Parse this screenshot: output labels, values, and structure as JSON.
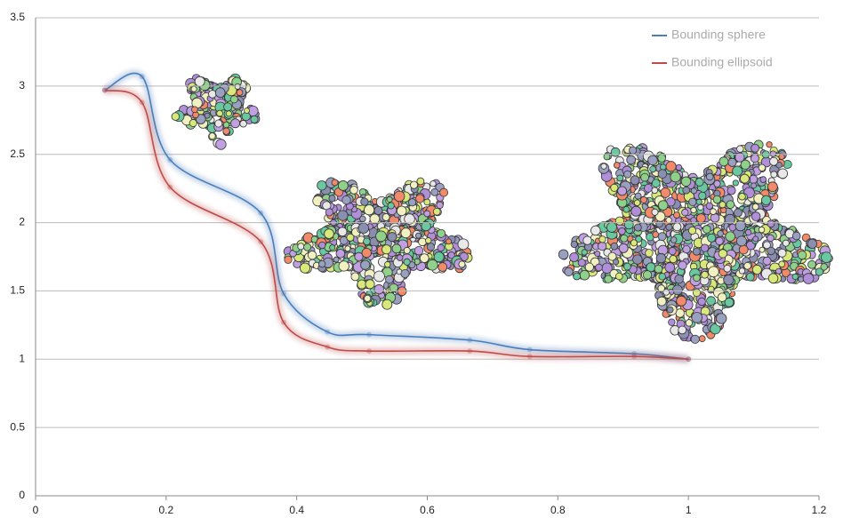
{
  "chart_data": {
    "type": "line",
    "x": [
      0.106,
      0.163,
      0.206,
      0.345,
      0.38,
      0.447,
      0.511,
      0.665,
      0.757,
      0.917,
      1.0
    ],
    "series": [
      {
        "name": "Bounding sphere",
        "color": "#4a7ebb",
        "values": [
          2.97,
          3.07,
          2.46,
          2.07,
          1.48,
          1.2,
          1.18,
          1.14,
          1.07,
          1.04,
          1.0
        ]
      },
      {
        "name": "Bounding ellipsoid",
        "color": "#be4b48",
        "values": [
          2.97,
          2.88,
          2.26,
          1.86,
          1.27,
          1.09,
          1.06,
          1.06,
          1.02,
          1.02,
          1.0
        ]
      }
    ],
    "xlim": [
      0,
      1.2
    ],
    "xticks": [
      0,
      0.2,
      0.4,
      0.6,
      0.8,
      1,
      1.2
    ],
    "ylim": [
      0,
      3.5
    ],
    "yticks": [
      0,
      0.5,
      1,
      1.5,
      2,
      2.5,
      3,
      3.5
    ],
    "grid": true,
    "smooth": true,
    "legend": "top-right"
  }
}
